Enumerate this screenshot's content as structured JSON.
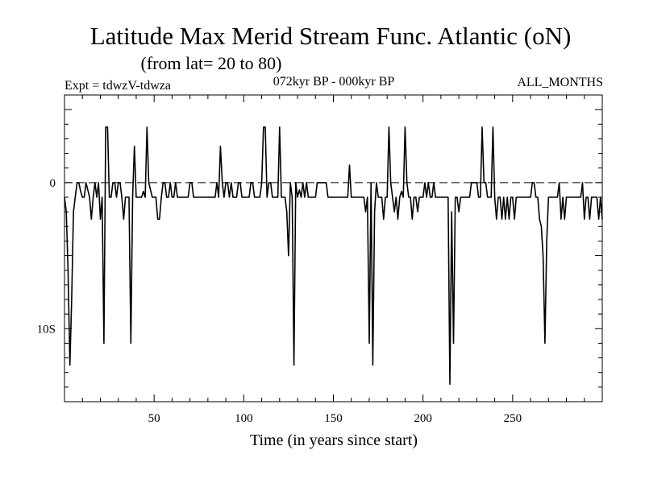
{
  "chart_data": {
    "type": "line",
    "title": "Latitude Max Merid Stream Func. Atlantic (oN)",
    "subtitle": "(from lat= 20 to 80)",
    "expt_label": "Expt = tdwzV-tdwza",
    "period_label": "072kyr BP - 000kyr BP",
    "months_label": "ALL_MONTHS",
    "xlabel": "Time (in years since start)",
    "ylabel": "",
    "xlim": [
      0,
      300
    ],
    "ylim": [
      -15,
      6
    ],
    "x_ticks": [
      50,
      100,
      150,
      200,
      250
    ],
    "x_tick_labels": [
      "50",
      "100",
      "150",
      "200",
      "250"
    ],
    "y_ticks": [
      0,
      -10
    ],
    "y_tick_labels": [
      "0",
      "10S"
    ],
    "reference_line": 0,
    "grid": false,
    "series": [
      {
        "values": [
          [
            0,
            -1
          ],
          [
            1,
            -2
          ],
          [
            2,
            -6
          ],
          [
            3,
            -12.5
          ],
          [
            4,
            -8
          ],
          [
            5,
            -2
          ],
          [
            6,
            -1
          ],
          [
            7,
            0
          ],
          [
            8,
            0
          ],
          [
            9,
            -0.6
          ],
          [
            10,
            -1
          ],
          [
            11,
            -1
          ],
          [
            12,
            0
          ],
          [
            13,
            -0.5
          ],
          [
            14,
            -1
          ],
          [
            15,
            -2.5
          ],
          [
            16,
            -1
          ],
          [
            17,
            0
          ],
          [
            18,
            -1
          ],
          [
            19,
            0
          ],
          [
            20,
            -2.5
          ],
          [
            21,
            -1
          ],
          [
            22,
            -11
          ],
          [
            23,
            3.8
          ],
          [
            24,
            3.8
          ],
          [
            25,
            -1
          ],
          [
            26,
            -1
          ],
          [
            27,
            0
          ],
          [
            28,
            0
          ],
          [
            29,
            -1
          ],
          [
            30,
            0
          ],
          [
            31,
            0
          ],
          [
            32,
            -1
          ],
          [
            33,
            -2.5
          ],
          [
            34,
            -1
          ],
          [
            35,
            -1
          ],
          [
            36,
            -1
          ],
          [
            37,
            -11
          ],
          [
            38,
            -1
          ],
          [
            39,
            2.5
          ],
          [
            40,
            -1
          ],
          [
            41,
            -1
          ],
          [
            42,
            -1
          ],
          [
            43,
            -1
          ],
          [
            44,
            -0.6
          ],
          [
            45,
            -1
          ],
          [
            46,
            3.8
          ],
          [
            47,
            0
          ],
          [
            48,
            -0.5
          ],
          [
            49,
            -1
          ],
          [
            50,
            -1
          ],
          [
            51,
            -1
          ],
          [
            52,
            -2.5
          ],
          [
            53,
            -2.5
          ],
          [
            54,
            -1
          ],
          [
            55,
            0
          ],
          [
            56,
            0
          ],
          [
            57,
            -1
          ],
          [
            58,
            -1
          ],
          [
            59,
            0
          ],
          [
            60,
            -1
          ],
          [
            61,
            -1
          ],
          [
            62,
            0
          ],
          [
            63,
            -1
          ],
          [
            64,
            -1
          ],
          [
            65,
            -1
          ],
          [
            66,
            -1
          ],
          [
            67,
            -1
          ],
          [
            68,
            -1
          ],
          [
            69,
            -1
          ],
          [
            70,
            0
          ],
          [
            71,
            0
          ],
          [
            72,
            -1
          ],
          [
            73,
            -1
          ],
          [
            74,
            -1
          ],
          [
            75,
            -1
          ],
          [
            76,
            -1
          ],
          [
            77,
            -1
          ],
          [
            78,
            -1
          ],
          [
            79,
            -1
          ],
          [
            80,
            -1
          ],
          [
            81,
            -1
          ],
          [
            82,
            -1
          ],
          [
            83,
            -1
          ],
          [
            84,
            -1
          ],
          [
            85,
            0
          ],
          [
            86,
            -1
          ],
          [
            87,
            2.5
          ],
          [
            88,
            0
          ],
          [
            89,
            -1
          ],
          [
            90,
            0
          ],
          [
            91,
            0
          ],
          [
            92,
            -1
          ],
          [
            93,
            0
          ],
          [
            94,
            -1
          ],
          [
            95,
            -1
          ],
          [
            96,
            -1
          ],
          [
            97,
            0
          ],
          [
            98,
            0
          ],
          [
            99,
            -1
          ],
          [
            100,
            -1
          ],
          [
            101,
            -1
          ],
          [
            102,
            -1
          ],
          [
            103,
            -1
          ],
          [
            104,
            0
          ],
          [
            105,
            0
          ],
          [
            106,
            -1
          ],
          [
            107,
            -1
          ],
          [
            108,
            -1
          ],
          [
            109,
            -1
          ],
          [
            110,
            0
          ],
          [
            111,
            3.8
          ],
          [
            112,
            3.8
          ],
          [
            113,
            -1
          ],
          [
            114,
            0
          ],
          [
            115,
            0
          ],
          [
            116,
            -1
          ],
          [
            117,
            -1
          ],
          [
            118,
            -1
          ],
          [
            119,
            -1
          ],
          [
            120,
            3.8
          ],
          [
            121,
            -1
          ],
          [
            122,
            -1
          ],
          [
            123,
            -1
          ],
          [
            124,
            -2
          ],
          [
            125,
            -5
          ],
          [
            126,
            0
          ],
          [
            127,
            -1
          ],
          [
            128,
            -12.5
          ],
          [
            129,
            0
          ],
          [
            130,
            -1
          ],
          [
            131,
            -0.5
          ],
          [
            132,
            -1
          ],
          [
            133,
            0
          ],
          [
            134,
            -1
          ],
          [
            135,
            0
          ],
          [
            136,
            -1
          ],
          [
            137,
            -1
          ],
          [
            138,
            -1
          ],
          [
            139,
            -1
          ],
          [
            140,
            -1
          ],
          [
            141,
            0
          ],
          [
            142,
            0
          ],
          [
            143,
            0
          ],
          [
            144,
            0
          ],
          [
            145,
            0
          ],
          [
            146,
            0
          ],
          [
            147,
            -1
          ],
          [
            148,
            -1
          ],
          [
            149,
            -1
          ],
          [
            150,
            -1
          ],
          [
            151,
            -1
          ],
          [
            152,
            -1
          ],
          [
            153,
            -1
          ],
          [
            154,
            -1
          ],
          [
            155,
            -1
          ],
          [
            156,
            -1
          ],
          [
            157,
            -1
          ],
          [
            158,
            -1
          ],
          [
            159,
            1.2
          ],
          [
            160,
            -1
          ],
          [
            161,
            -1
          ],
          [
            162,
            -1
          ],
          [
            163,
            -1
          ],
          [
            164,
            -1
          ],
          [
            165,
            -1
          ],
          [
            166,
            -1
          ],
          [
            167,
            -1
          ],
          [
            168,
            -2
          ],
          [
            169,
            -1
          ],
          [
            170,
            -11
          ],
          [
            171,
            0
          ],
          [
            172,
            -12.5
          ],
          [
            173,
            -2
          ],
          [
            174,
            0
          ],
          [
            175,
            -1
          ],
          [
            176,
            -1
          ],
          [
            177,
            -1
          ],
          [
            178,
            -2.5
          ],
          [
            179,
            -1
          ],
          [
            180,
            -1
          ],
          [
            181,
            3.8
          ],
          [
            182,
            0
          ],
          [
            183,
            -1
          ],
          [
            184,
            -2
          ],
          [
            185,
            -1
          ],
          [
            186,
            -2.5
          ],
          [
            187,
            -1
          ],
          [
            188,
            -0.6
          ],
          [
            189,
            -1
          ],
          [
            190,
            3.8
          ],
          [
            191,
            0
          ],
          [
            192,
            -1
          ],
          [
            193,
            -1
          ],
          [
            194,
            -2.5
          ],
          [
            195,
            -1
          ],
          [
            196,
            -1
          ],
          [
            197,
            -2
          ],
          [
            198,
            -1
          ],
          [
            199,
            -1
          ],
          [
            200,
            -1
          ],
          [
            201,
            0
          ],
          [
            202,
            -1
          ],
          [
            203,
            0
          ],
          [
            204,
            -1
          ],
          [
            205,
            -1
          ],
          [
            206,
            0
          ],
          [
            207,
            -1
          ],
          [
            208,
            -1
          ],
          [
            209,
            -1
          ],
          [
            210,
            -1
          ],
          [
            211,
            -1
          ],
          [
            212,
            -1
          ],
          [
            213,
            -1
          ],
          [
            214,
            -1
          ],
          [
            215,
            -13.8
          ],
          [
            216,
            -2
          ],
          [
            217,
            -11
          ],
          [
            218,
            -1
          ],
          [
            219,
            -1
          ],
          [
            220,
            -2
          ],
          [
            221,
            -1
          ],
          [
            222,
            -1
          ],
          [
            223,
            -1
          ],
          [
            224,
            -1
          ],
          [
            225,
            -1
          ],
          [
            226,
            -1
          ],
          [
            227,
            0
          ],
          [
            228,
            0
          ],
          [
            229,
            0
          ],
          [
            230,
            0
          ],
          [
            231,
            -1
          ],
          [
            232,
            -1
          ],
          [
            233,
            3.8
          ],
          [
            234,
            0
          ],
          [
            235,
            0
          ],
          [
            236,
            -1
          ],
          [
            237,
            -1
          ],
          [
            238,
            -1
          ],
          [
            239,
            3.8
          ],
          [
            240,
            -1
          ],
          [
            241,
            -2.5
          ],
          [
            242,
            -1
          ],
          [
            243,
            -1
          ],
          [
            244,
            -2.5
          ],
          [
            245,
            -1
          ],
          [
            246,
            -2.5
          ],
          [
            247,
            -1
          ],
          [
            248,
            -2.5
          ],
          [
            249,
            -1
          ],
          [
            250,
            -1
          ],
          [
            251,
            -2.5
          ],
          [
            252,
            -1
          ],
          [
            253,
            -1
          ],
          [
            254,
            -1
          ],
          [
            255,
            -1
          ],
          [
            256,
            -1
          ],
          [
            257,
            -1
          ],
          [
            258,
            -1
          ],
          [
            259,
            -1
          ],
          [
            260,
            -1
          ],
          [
            261,
            0
          ],
          [
            262,
            0
          ],
          [
            263,
            -1
          ],
          [
            264,
            -1
          ],
          [
            265,
            -2.5
          ],
          [
            266,
            -3
          ],
          [
            267,
            -5
          ],
          [
            268,
            -11
          ],
          [
            269,
            -4
          ],
          [
            270,
            -1
          ],
          [
            271,
            -1
          ],
          [
            272,
            -1
          ],
          [
            273,
            -1
          ],
          [
            274,
            -1
          ],
          [
            275,
            -1
          ],
          [
            276,
            0
          ],
          [
            277,
            -2.5
          ],
          [
            278,
            -1
          ],
          [
            279,
            -2.5
          ],
          [
            280,
            -1
          ],
          [
            281,
            -1
          ],
          [
            282,
            -1
          ],
          [
            283,
            -1
          ],
          [
            284,
            -1
          ],
          [
            285,
            -1
          ],
          [
            286,
            -1
          ],
          [
            287,
            -1
          ],
          [
            288,
            -1
          ],
          [
            289,
            0
          ],
          [
            290,
            -2.5
          ],
          [
            291,
            -1
          ],
          [
            292,
            -1
          ],
          [
            293,
            -2.5
          ],
          [
            294,
            -1
          ],
          [
            295,
            -1
          ],
          [
            296,
            -1
          ],
          [
            297,
            -1
          ],
          [
            298,
            -2.5
          ],
          [
            299,
            -1
          ],
          [
            300,
            -2.5
          ]
        ]
      }
    ]
  }
}
